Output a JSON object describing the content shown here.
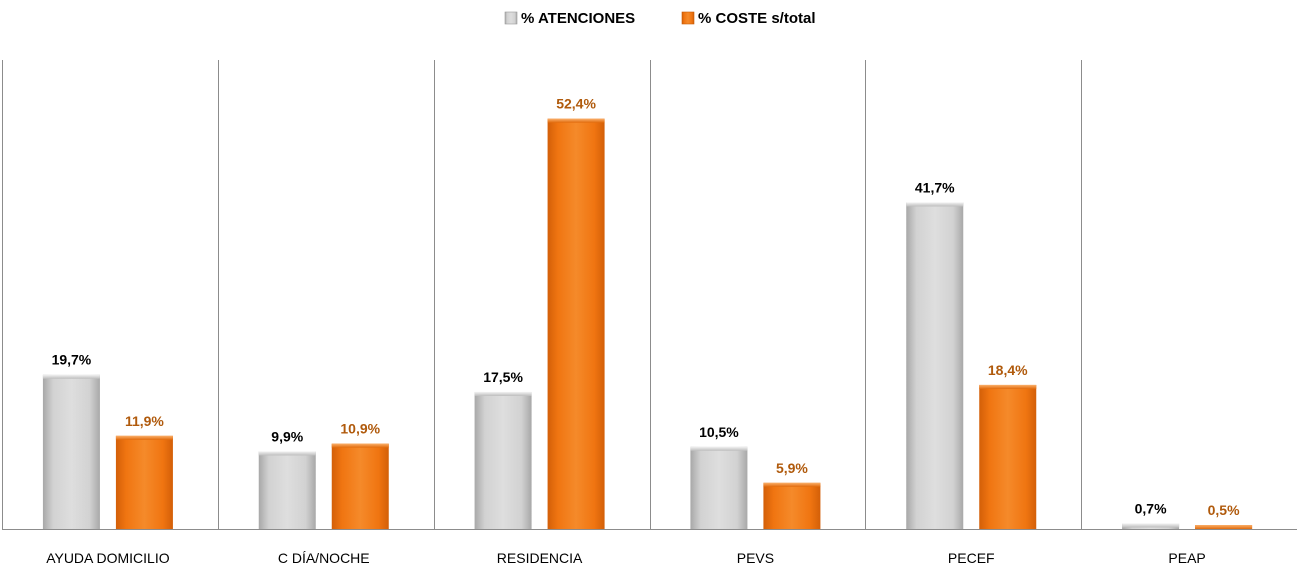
{
  "chart_data": {
    "type": "bar",
    "categories": [
      "AYUDA DOMICILIO",
      "C DÍA/NOCHE",
      "RESIDENCIA",
      "PEVS",
      "PECEF",
      "PEAP"
    ],
    "series": [
      {
        "name": "% ATENCIONES",
        "values": [
          19.7,
          9.9,
          17.5,
          10.5,
          41.7,
          0.7
        ],
        "labels": [
          "19,7%",
          "9,9%",
          "17,5%",
          "10,5%",
          "41,7%",
          "0,7%"
        ],
        "color": "#c8c8c8",
        "label_color": "#000000"
      },
      {
        "name": "% COSTE s/total",
        "values": [
          11.9,
          10.9,
          52.4,
          5.9,
          18.4,
          0.5
        ],
        "labels": [
          "11,9%",
          "10,9%",
          "52,4%",
          "5,9%",
          "18,4%",
          "0,5%"
        ],
        "color": "#f07511",
        "label_color": "#b05a0c"
      }
    ],
    "title": "",
    "xlabel": "",
    "ylabel": "",
    "ylim": [
      0,
      60
    ],
    "grid": false,
    "category_separators": true,
    "legend_position": "top-center"
  }
}
